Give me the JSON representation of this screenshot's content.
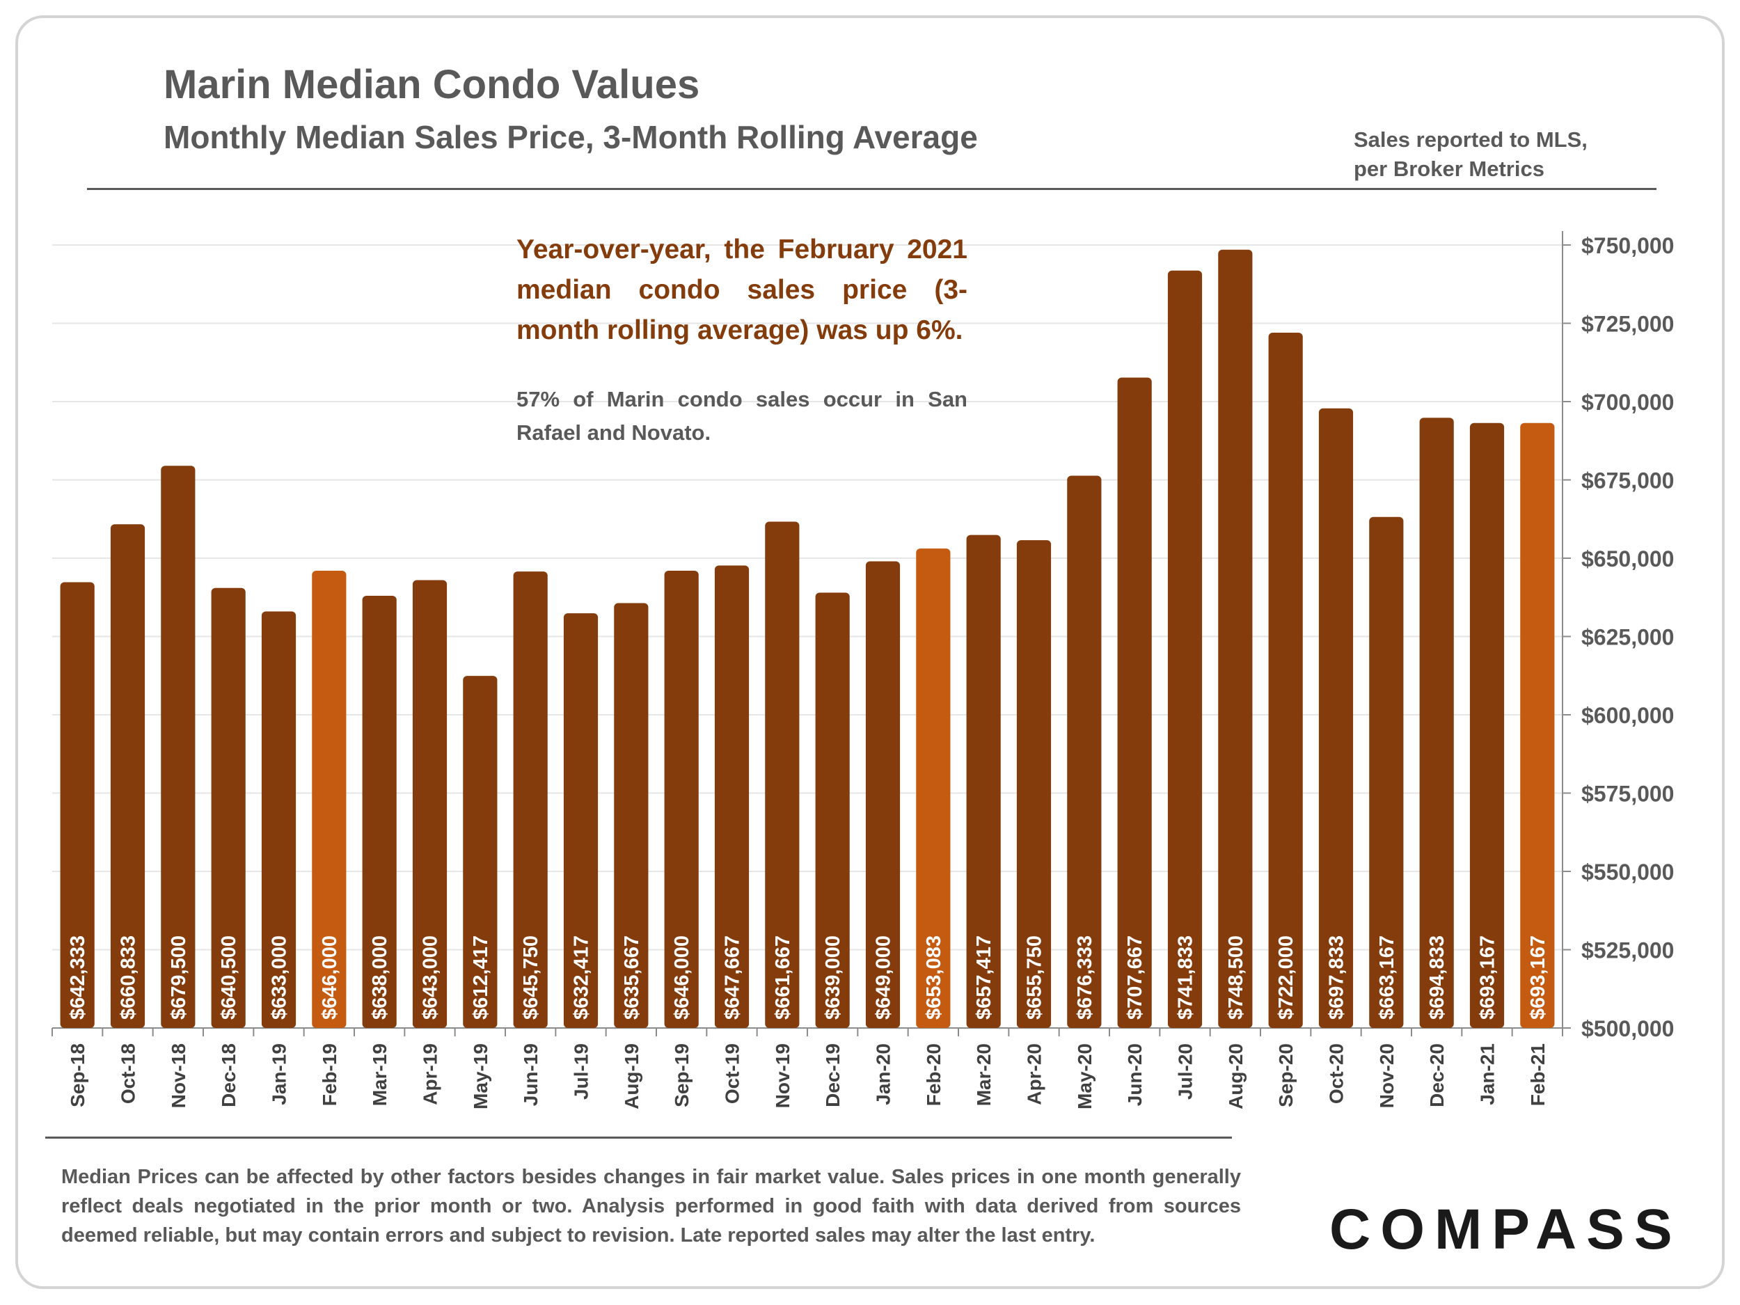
{
  "header": {
    "title": "Marin Median Condo Values",
    "subtitle": "Monthly Median Sales Price, 3-Month Rolling Average",
    "source_line1": "Sales reported to MLS,",
    "source_line2": "per Broker Metrics"
  },
  "callout": {
    "main": "Year-over-year, the February 2021 median condo sales price (3-month rolling average) was up 6%.",
    "sub": "57% of Marin condo sales occur in San Rafael and Novato."
  },
  "footnote": "Median Prices can be affected by other factors besides changes in fair market value. Sales prices in one month generally reflect deals negotiated in the prior month or two. Analysis performed in good faith with data derived from sources deemed reliable, but may contain errors and subject to revision. Late reported sales may alter the last entry.",
  "logo": {
    "text": "COMPASS"
  },
  "colors": {
    "bar": "#843c0c",
    "bar_highlight": "#c55a11",
    "callout_text": "#843c0c",
    "text_gray": "#595959"
  },
  "chart_data": {
    "type": "bar",
    "categories": [
      "Sep-18",
      "Oct-18",
      "Nov-18",
      "Dec-18",
      "Jan-19",
      "Feb-19",
      "Mar-19",
      "Apr-19",
      "May-19",
      "Jun-19",
      "Jul-19",
      "Aug-19",
      "Sep-19",
      "Oct-19",
      "Nov-19",
      "Dec-19",
      "Jan-20",
      "Feb-20",
      "Mar-20",
      "Apr-20",
      "May-20",
      "Jun-20",
      "Jul-20",
      "Aug-20",
      "Sep-20",
      "Oct-20",
      "Nov-20",
      "Dec-20",
      "Jan-21",
      "Feb-21"
    ],
    "values": [
      642333,
      660833,
      679500,
      640500,
      633000,
      646000,
      638000,
      643000,
      612417,
      645750,
      632417,
      635667,
      646000,
      647667,
      661667,
      639000,
      649000,
      653083,
      657417,
      655750,
      676333,
      707667,
      741833,
      748500,
      722000,
      697833,
      663167,
      694833,
      693167,
      693167
    ],
    "data_labels": [
      "$642,333",
      "$660,833",
      "$679,500",
      "$640,500",
      "$633,000",
      "$646,000",
      "$638,000",
      "$643,000",
      "$612,417",
      "$645,750",
      "$632,417",
      "$635,667",
      "$646,000",
      "$647,667",
      "$661,667",
      "$639,000",
      "$649,000",
      "$653,083",
      "$657,417",
      "$655,750",
      "$676,333",
      "$707,667",
      "$741,833",
      "$748,500",
      "$722,000",
      "$697,833",
      "$663,167",
      "$694,833",
      "$693,167",
      "$693,167"
    ],
    "highlighted": [
      "Feb-19",
      "Feb-20",
      "Feb-21"
    ],
    "ylim": [
      500000,
      750000
    ],
    "y_ticks": [
      500000,
      525000,
      550000,
      575000,
      600000,
      625000,
      650000,
      675000,
      700000,
      725000,
      750000
    ],
    "y_tick_labels": [
      "$500,000",
      "$525,000",
      "$550,000",
      "$575,000",
      "$600,000",
      "$625,000",
      "$650,000",
      "$675,000",
      "$700,000",
      "$725,000",
      "$750,000"
    ],
    "y_axis_side": "right",
    "grid": true,
    "legend": "none"
  }
}
